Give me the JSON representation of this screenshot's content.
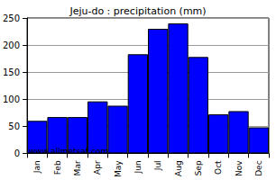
{
  "chart_data": {
    "type": "bar",
    "title": "Jeju-do : precipitation (mm)",
    "categories": [
      "Jan",
      "Feb",
      "Mar",
      "Apr",
      "May",
      "Jun",
      "Jul",
      "Aug",
      "Sep",
      "Oct",
      "Nov",
      "Dec"
    ],
    "values": [
      60,
      67,
      67,
      96,
      88,
      183,
      230,
      240,
      178,
      72,
      78,
      48
    ],
    "color": "#0000ff",
    "ylim": [
      0,
      250
    ],
    "yticks": [
      0,
      50,
      100,
      150,
      200,
      250
    ],
    "grid": true,
    "annotations": [
      "www.allmetsat.com"
    ]
  }
}
